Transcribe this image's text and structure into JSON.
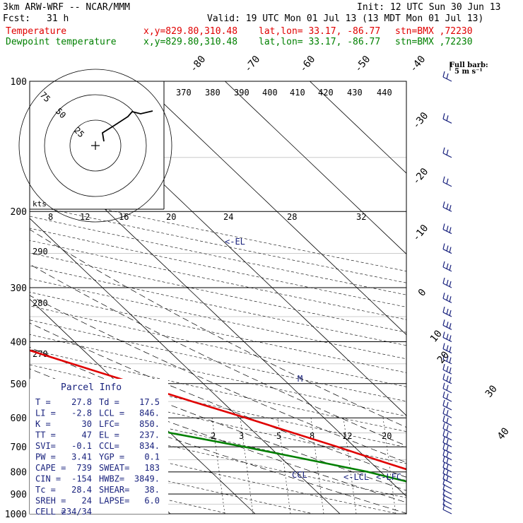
{
  "header": {
    "model": "3km ARW-WRF -- NCAR/MMM",
    "init": "Init: 12 UTC Sun 30 Jun 13",
    "fcst_label": "Fcst:",
    "fcst_value": "31 h",
    "valid": "Valid: 19 UTC Mon 01 Jul 13 (13 MDT Mon 01 Jul 13)",
    "temp_label": "Temperature",
    "dew_label": "Dewpoint temperature",
    "loc_xy": "x,y=829.80,310.48",
    "loc_latlon": "lat,lon= 33.17, -86.77",
    "loc_stn": "stn=BMX ,72230"
  },
  "wind_legend": {
    "title": "Full barb:",
    "unit": "5 m s⁻¹"
  },
  "pressure_labels": [
    "100",
    "200",
    "300",
    "400",
    "500",
    "600",
    "700",
    "800",
    "900",
    "1000"
  ],
  "theta_labels": [
    "370",
    "380",
    "390",
    "400",
    "410",
    "420",
    "430",
    "440"
  ],
  "theta_low_labels": [
    "290",
    "280",
    "270"
  ],
  "hodo_speed_labels": [
    "8",
    "12",
    "16",
    "20",
    "24",
    "28",
    "32"
  ],
  "hodo_kts": "kts",
  "hodo_ring_labels": [
    "75",
    "50",
    "25"
  ],
  "temp_top_labels": [
    "-80",
    "-70",
    "-60",
    "-50",
    "-40"
  ],
  "temp_right_labels": [
    "-30",
    "-20",
    "-10",
    "0",
    "10",
    "20",
    "30",
    "40"
  ],
  "mixing_labels": [
    "2",
    "3",
    "5",
    "8",
    "12",
    "20"
  ],
  "annotations": {
    "el": "<-EL",
    "lcl": "<-LCL",
    "lfc": "<-LFC",
    "ccl": "CCL",
    "m": "M"
  },
  "parcel_info": {
    "title": "Parcel Info",
    "rows": [
      {
        "l": "T  =",
        "lv": "27.8",
        "r": "Td =",
        "rv": "17.5"
      },
      {
        "l": "LI =",
        "lv": "-2.8",
        "r": "LCL =",
        "rv": "846."
      },
      {
        "l": "K  =",
        "lv": "30",
        "r": "LFC=",
        "rv": "850."
      },
      {
        "l": "TT =",
        "lv": "47",
        "r": "EL =",
        "rv": "237."
      },
      {
        "l": "SVI=",
        "lv": "-0.1",
        "r": "CCL=",
        "rv": "834."
      },
      {
        "l": "PW =",
        "lv": "3.41",
        "r": "YGP =",
        "rv": "0.1"
      },
      {
        "l": "CAPE =",
        "lv": "739",
        "r": "SWEAT=",
        "rv": "183"
      },
      {
        "l": "CIN =",
        "lv": "-154",
        "r": "HWBZ=",
        "rv": "3849."
      },
      {
        "l": "Tc =",
        "lv": "28.4",
        "r": "SHEAR=",
        "rv": "38."
      },
      {
        "l": "SREH =",
        "lv": "24",
        "r": "LAPSE=",
        "rv": "6.0"
      },
      {
        "l": "CELL =",
        "lv": "234/34",
        "r": "",
        "rv": ""
      }
    ]
  },
  "colors": {
    "temperature": "#e00000",
    "dewpoint": "#008000",
    "annot": "#1a237e"
  },
  "chart_data": {
    "type": "line",
    "y_axis": "pressure (hPa)",
    "x_axis": "temperature (°C, skewed)",
    "ylim": [
      1000,
      100
    ],
    "series": [
      {
        "name": "Temperature",
        "pressure": [
          975,
          950,
          925,
          900,
          875,
          850,
          800,
          750,
          700,
          650,
          600,
          550,
          500,
          450,
          400,
          350,
          300,
          250,
          200,
          175,
          150,
          130,
          115,
          100
        ],
        "values": [
          27.0,
          24.0,
          21.8,
          20.0,
          18.2,
          16.5,
          14.0,
          11.0,
          8.0,
          4.5,
          0.8,
          -3.5,
          -8.0,
          -13.0,
          -18.5,
          -25.5,
          -33.5,
          -42.5,
          -54.0,
          -59.0,
          -62.0,
          -63.5,
          -63.0,
          -62.0
        ]
      },
      {
        "name": "Dewpoint temperature",
        "pressure": [
          975,
          950,
          925,
          900,
          875,
          850,
          800,
          750,
          700,
          650,
          600,
          550,
          500,
          450,
          400,
          350,
          300,
          250,
          200,
          175,
          150,
          130,
          115,
          100
        ],
        "values": [
          17.5,
          17.0,
          15.5,
          14.5,
          14.0,
          12.5,
          8.5,
          3.0,
          -3.0,
          -10.0,
          -15.0,
          -28.0,
          -40.0,
          -46.0,
          -46.0,
          -45.0,
          -50.0,
          -56.0,
          -62.0,
          -70.0,
          -80.0,
          -85.0,
          -88.0,
          -85.0
        ]
      }
    ]
  }
}
